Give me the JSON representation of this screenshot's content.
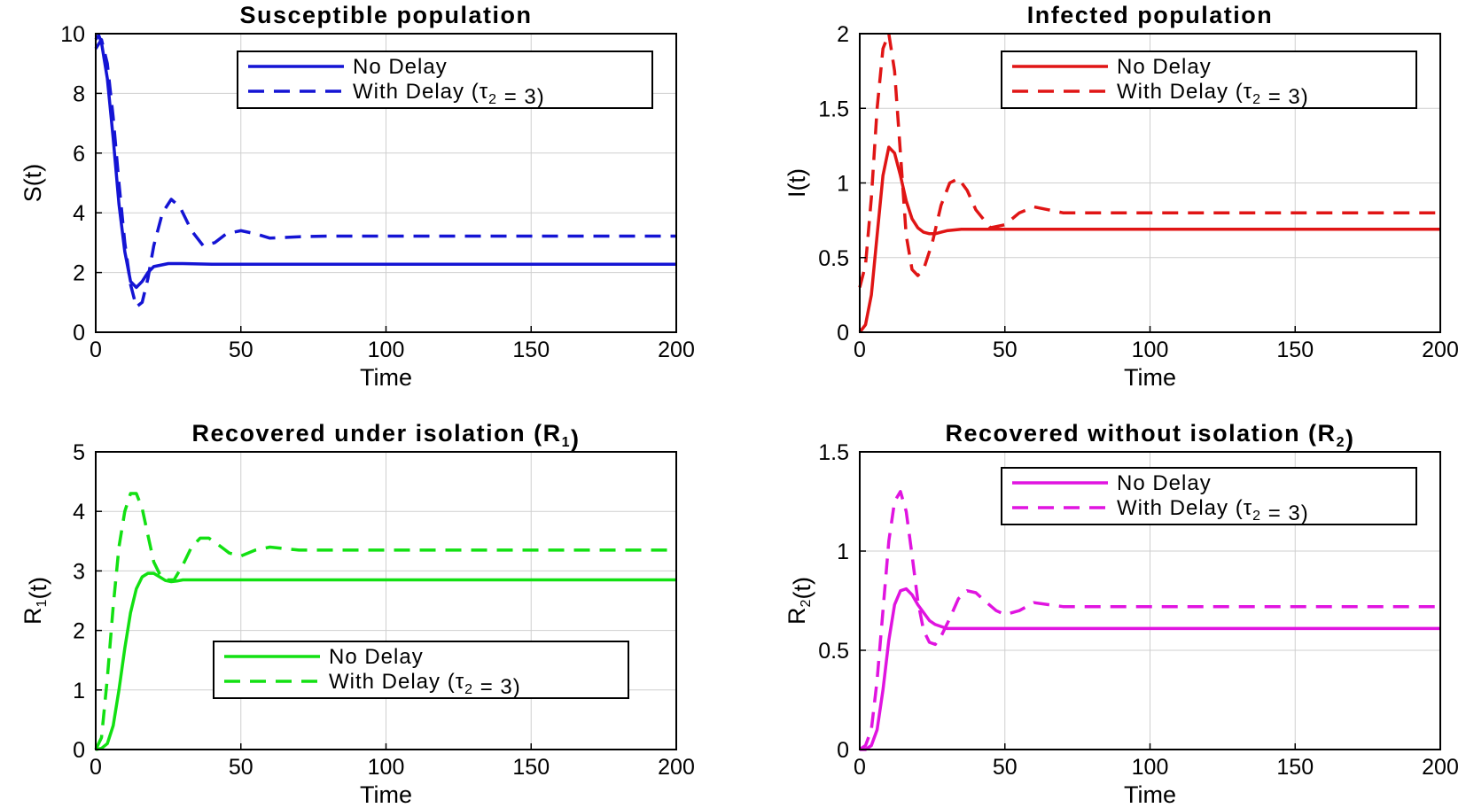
{
  "chart_data": [
    {
      "type": "line",
      "title": "Susceptible population",
      "xlabel": "Time",
      "ylabel": "S(t)",
      "xlim": [
        0,
        200
      ],
      "ylim": [
        0,
        10
      ],
      "xticks": [
        0,
        50,
        100,
        150,
        200
      ],
      "yticks": [
        0,
        2,
        4,
        6,
        8,
        10
      ],
      "grid": true,
      "legend_position": "top-right",
      "color": "#1414d4",
      "series": [
        {
          "name": "No Delay",
          "style": "solid",
          "x": [
            0,
            1,
            2,
            4,
            6,
            8,
            10,
            12,
            14,
            16,
            18,
            20,
            25,
            30,
            40,
            60,
            100,
            200
          ],
          "y": [
            9.8,
            9.95,
            9.7,
            8.5,
            6.5,
            4.3,
            2.7,
            1.7,
            1.5,
            1.7,
            2.0,
            2.2,
            2.3,
            2.3,
            2.28,
            2.28,
            2.28,
            2.28
          ]
        },
        {
          "name": "With  Delay  (τ₂ = 3)",
          "style": "dashed",
          "x": [
            0,
            2,
            4,
            6,
            8,
            10,
            12,
            14,
            16,
            18,
            20,
            23,
            26,
            29,
            33,
            37,
            41,
            45,
            50,
            55,
            60,
            70,
            80,
            100,
            200
          ],
          "y": [
            9.5,
            9.8,
            9.0,
            7.2,
            5.0,
            3.0,
            1.6,
            0.85,
            1.0,
            1.8,
            2.9,
            4.0,
            4.45,
            4.2,
            3.4,
            2.9,
            3.0,
            3.3,
            3.4,
            3.3,
            3.15,
            3.2,
            3.22,
            3.22,
            3.22
          ]
        }
      ]
    },
    {
      "type": "line",
      "title": "Infected population",
      "xlabel": "Time",
      "ylabel": "I(t)",
      "xlim": [
        0,
        200
      ],
      "ylim": [
        0,
        2
      ],
      "xticks": [
        0,
        50,
        100,
        150,
        200
      ],
      "yticks": [
        0,
        0.5,
        1,
        1.5,
        2
      ],
      "ytick_labels": [
        "0",
        "0.5",
        "1",
        "1.5",
        "2"
      ],
      "grid": true,
      "legend_position": "top-right",
      "color": "#e01515",
      "series": [
        {
          "name": "No Delay",
          "style": "solid",
          "x": [
            0,
            2,
            4,
            6,
            8,
            10,
            12,
            14,
            16,
            18,
            20,
            22,
            24,
            26,
            28,
            30,
            35,
            40,
            50,
            200
          ],
          "y": [
            0.0,
            0.05,
            0.25,
            0.65,
            1.05,
            1.24,
            1.2,
            1.05,
            0.88,
            0.76,
            0.7,
            0.67,
            0.66,
            0.66,
            0.67,
            0.68,
            0.69,
            0.69,
            0.69,
            0.69
          ]
        },
        {
          "name": "With  Delay  (τ₂ = 3)",
          "style": "dashed",
          "x": [
            0,
            2,
            4,
            6,
            8,
            10,
            12,
            14,
            16,
            18,
            20,
            22,
            25,
            28,
            31,
            34,
            37,
            40,
            45,
            50,
            55,
            60,
            65,
            70,
            80,
            100,
            200
          ],
          "y": [
            0.3,
            0.45,
            0.9,
            1.5,
            1.9,
            2.0,
            1.75,
            1.2,
            0.65,
            0.42,
            0.38,
            0.42,
            0.6,
            0.85,
            1.0,
            1.03,
            0.95,
            0.82,
            0.7,
            0.72,
            0.8,
            0.84,
            0.82,
            0.8,
            0.8,
            0.8,
            0.8
          ]
        }
      ]
    },
    {
      "type": "line",
      "title": "Recovered  under  isolation  (R₁)",
      "xlabel": "Time",
      "ylabel": "R₁(t)",
      "xlim": [
        0,
        200
      ],
      "ylim": [
        0,
        5
      ],
      "xticks": [
        0,
        50,
        100,
        150,
        200
      ],
      "yticks": [
        0,
        1,
        2,
        3,
        4,
        5
      ],
      "grid": true,
      "legend_position": "bottom-center",
      "color": "#12e012",
      "series": [
        {
          "name": "No Delay",
          "style": "solid",
          "x": [
            0,
            2,
            4,
            6,
            8,
            10,
            12,
            14,
            16,
            18,
            20,
            22,
            24,
            26,
            28,
            30,
            35,
            40,
            200
          ],
          "y": [
            0.0,
            0.02,
            0.1,
            0.4,
            1.0,
            1.7,
            2.3,
            2.7,
            2.9,
            2.96,
            2.96,
            2.9,
            2.84,
            2.82,
            2.83,
            2.85,
            2.85,
            2.85,
            2.85
          ]
        },
        {
          "name": "With  Delay  (τ₂ = 3)",
          "style": "dashed",
          "x": [
            0,
            2,
            4,
            6,
            8,
            10,
            12,
            14,
            16,
            18,
            20,
            22,
            24,
            27,
            30,
            33,
            36,
            39,
            42,
            46,
            50,
            55,
            60,
            70,
            80,
            100,
            200
          ],
          "y": [
            0.0,
            0.2,
            1.2,
            2.4,
            3.4,
            4.0,
            4.3,
            4.3,
            4.05,
            3.6,
            3.15,
            2.95,
            2.85,
            2.85,
            3.1,
            3.4,
            3.55,
            3.55,
            3.45,
            3.3,
            3.25,
            3.35,
            3.4,
            3.35,
            3.35,
            3.35,
            3.35
          ]
        }
      ]
    },
    {
      "type": "line",
      "title": "Recovered  without  isolation  (R₂)",
      "xlabel": "Time",
      "ylabel": "R₂(t)",
      "xlim": [
        0,
        200
      ],
      "ylim": [
        0,
        1.5
      ],
      "xticks": [
        0,
        50,
        100,
        150,
        200
      ],
      "yticks": [
        0,
        0.5,
        1,
        1.5
      ],
      "ytick_labels": [
        "0",
        "0.5",
        "1",
        "1.5"
      ],
      "grid": true,
      "legend_position": "top-right",
      "color": "#e014e0",
      "series": [
        {
          "name": "No Delay",
          "style": "solid",
          "x": [
            0,
            2,
            4,
            6,
            8,
            10,
            12,
            14,
            16,
            18,
            20,
            22,
            24,
            26,
            28,
            30,
            35,
            40,
            200
          ],
          "y": [
            0.0,
            0.0,
            0.02,
            0.1,
            0.3,
            0.55,
            0.73,
            0.8,
            0.81,
            0.78,
            0.73,
            0.69,
            0.65,
            0.63,
            0.62,
            0.61,
            0.61,
            0.61,
            0.61
          ]
        },
        {
          "name": "With  Delay  (τ₂ = 3)",
          "style": "dashed",
          "x": [
            0,
            2,
            4,
            6,
            8,
            10,
            12,
            14,
            16,
            18,
            20,
            22,
            24,
            26,
            28,
            31,
            34,
            37,
            40,
            43,
            47,
            50,
            55,
            60,
            70,
            80,
            100,
            200
          ],
          "y": [
            0.0,
            0.02,
            0.1,
            0.35,
            0.7,
            1.05,
            1.25,
            1.3,
            1.2,
            0.98,
            0.75,
            0.6,
            0.54,
            0.53,
            0.57,
            0.66,
            0.76,
            0.8,
            0.79,
            0.75,
            0.7,
            0.68,
            0.7,
            0.74,
            0.72,
            0.72,
            0.72,
            0.72
          ]
        }
      ]
    }
  ]
}
